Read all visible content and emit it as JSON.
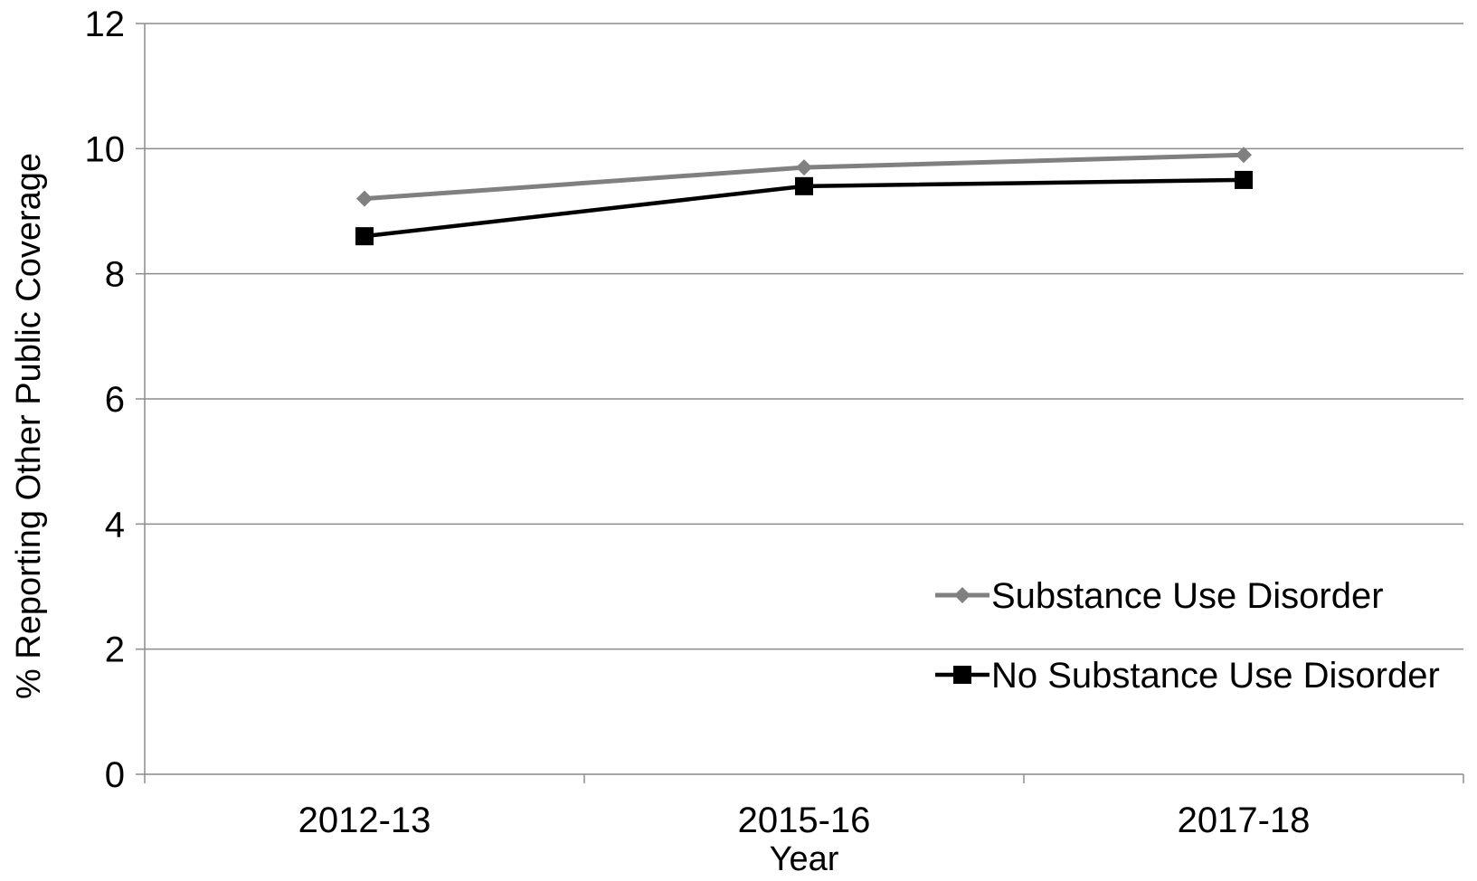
{
  "chart_data": {
    "type": "line",
    "categories": [
      "2012-13",
      "2015-16",
      "2017-18"
    ],
    "series": [
      {
        "name": "Substance Use Disorder",
        "values": [
          9.2,
          9.7,
          9.9
        ],
        "color": "#808080",
        "marker": "diamond"
      },
      {
        "name": "No Substance Use Disorder",
        "values": [
          8.6,
          9.4,
          9.5
        ],
        "color": "#000000",
        "marker": "square"
      }
    ],
    "title": "",
    "xlabel": "Year",
    "ylabel": "% Reporting Other Public Coverage",
    "ylim": [
      0,
      12
    ],
    "yticks": [
      "0",
      "2",
      "4",
      "6",
      "8",
      "10",
      "12"
    ],
    "grid": true,
    "legend": "bottom-right"
  }
}
